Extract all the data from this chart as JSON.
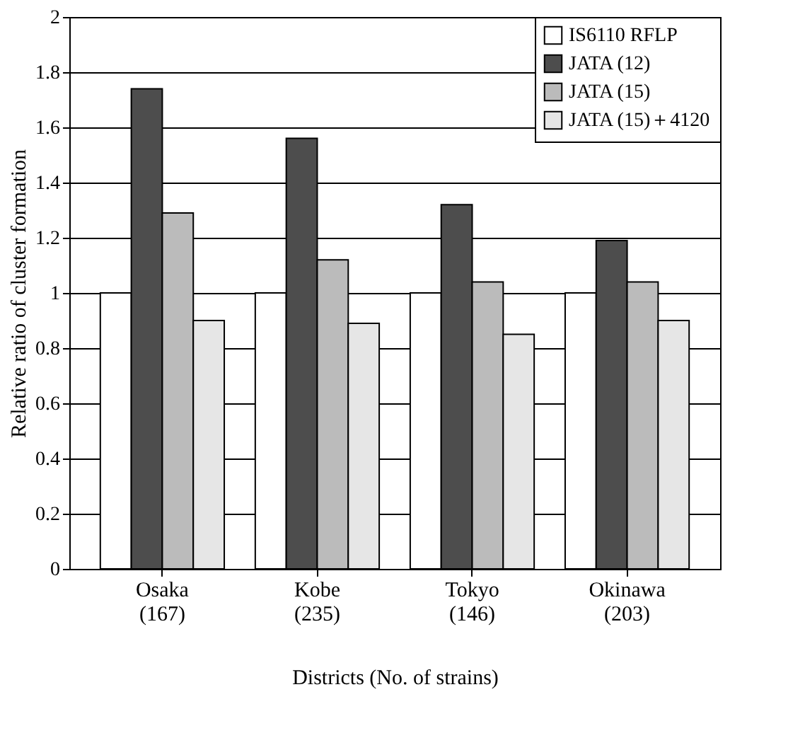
{
  "chart_data": {
    "type": "bar",
    "xlabel": "Districts (No. of strains)",
    "ylabel": "Relative ratio of cluster formation",
    "categories": [
      "Osaka\n(167)",
      "Kobe\n(235)",
      "Tokyo\n(146)",
      "Okinawa\n(203)"
    ],
    "series": [
      {
        "name": "IS6110 RFLP",
        "color": "#ffffff",
        "values": [
          1,
          1,
          1,
          1
        ]
      },
      {
        "name": "JATA (12)",
        "color": "#4d4d4d",
        "values": [
          1.74,
          1.56,
          1.32,
          1.19
        ]
      },
      {
        "name": "JATA (15)",
        "color": "#bbbbbb",
        "values": [
          1.29,
          1.12,
          1.04,
          1.04
        ]
      },
      {
        "name": "JATA (15)＋4120",
        "color": "#e6e6e6",
        "values": [
          0.9,
          0.89,
          0.85,
          0.9
        ]
      }
    ],
    "ylim": [
      0,
      2
    ],
    "yticks": [
      0,
      0.2,
      0.4,
      0.6,
      0.8,
      1,
      1.2,
      1.4,
      1.6,
      1.8,
      2
    ],
    "grid": "y",
    "legend": "top right"
  }
}
